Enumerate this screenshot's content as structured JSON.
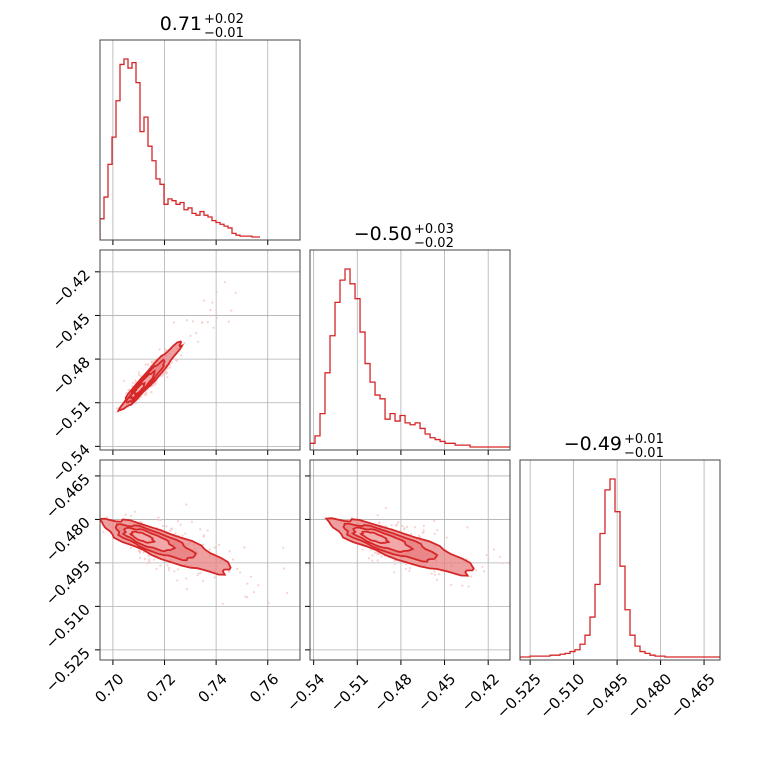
{
  "colors": {
    "main": "#d62728",
    "fill": "#f4b3b3",
    "fill_dark": "#e87f80",
    "scatter": "#f6c6c6"
  },
  "chart_data": [
    {
      "type": "histogram",
      "panel": "1D marginal, parameter 1",
      "title": {
        "base": "0.71",
        "sup": "+0.02",
        "sub": "−0.01"
      },
      "xlim": [
        0.695,
        0.7725
      ],
      "xticks": [
        0.7,
        0.72,
        0.74,
        0.76
      ],
      "xticklabels": [
        "0.70",
        "0.72",
        "0.74",
        "0.76"
      ],
      "bin_edges_start": 0.695,
      "bin_width": 0.00155,
      "counts": [
        10,
        22,
        40,
        55,
        75,
        95,
        98,
        93,
        96,
        85,
        58,
        66,
        50,
        42,
        32,
        29,
        18,
        21,
        20,
        18,
        19,
        15,
        16,
        13,
        12,
        14,
        12,
        11,
        9,
        8,
        7,
        6,
        5,
        2,
        1,
        0.5,
        0.5,
        0.5,
        0,
        0
      ],
      "grid": true
    },
    {
      "type": "histogram",
      "panel": "1D marginal, parameter 2",
      "title": {
        "base": "−0.50",
        "sup": "+0.03",
        "sub": "−0.02"
      },
      "xlim": [
        -0.5425,
        -0.405
      ],
      "xticks": [
        -0.54,
        -0.51,
        -0.48,
        -0.45,
        -0.42
      ],
      "xticklabels": [
        "−0.54",
        "−0.51",
        "−0.48",
        "−0.45",
        "−0.42"
      ],
      "bin_edges_start": -0.5425,
      "bin_width": 0.00344,
      "counts": [
        2,
        6,
        18,
        40,
        60,
        78,
        90,
        96,
        88,
        80,
        62,
        45,
        35,
        28,
        26,
        15,
        18,
        14,
        17,
        13,
        12,
        13,
        10,
        7,
        5,
        4,
        3,
        2,
        2,
        1,
        1,
        1,
        0,
        0,
        0,
        0,
        0,
        0,
        0,
        0
      ],
      "grid": true
    },
    {
      "type": "histogram",
      "panel": "1D marginal, parameter 3",
      "title": {
        "base": "−0.49",
        "sup": "+0.01",
        "sub": "−0.01"
      },
      "xlim": [
        -0.5285,
        -0.4595
      ],
      "xticks": [
        -0.525,
        -0.51,
        -0.495,
        -0.48,
        -0.465
      ],
      "xticklabels": [
        "−0.525",
        "−0.510",
        "−0.495",
        "−0.480",
        "−0.465"
      ],
      "bin_edges_start": -0.5285,
      "bin_width": 0.001725,
      "counts": [
        0,
        0,
        0.5,
        0.5,
        0.5,
        0.5,
        1,
        1,
        1.5,
        2,
        3,
        4,
        7,
        12,
        22,
        40,
        68,
        92,
        98,
        80,
        50,
        26,
        12,
        6,
        3,
        2,
        1,
        0.5,
        0.5,
        0,
        0,
        0,
        0,
        0,
        0,
        0,
        0,
        0,
        0,
        0
      ],
      "grid": true
    },
    {
      "type": "scatter-contour",
      "panel": "2D, parameter 1 vs parameter 2",
      "xlim": [
        0.695,
        0.7725
      ],
      "ylim": [
        -0.5425,
        -0.405
      ],
      "xticks": [
        0.7,
        0.72,
        0.74,
        0.76
      ],
      "yticks": [
        -0.54,
        -0.51,
        -0.48,
        -0.45,
        -0.42
      ],
      "yticklabels": [
        "−0.54",
        "−0.51",
        "−0.48",
        "−0.45",
        "−0.42"
      ],
      "center": [
        0.7095,
        -0.502
      ],
      "direction_per_x": 1.98,
      "contours": [
        {
          "level": 0.4,
          "half_length": 0.004,
          "half_width": 0.0014
        },
        {
          "level": 0.8,
          "half_length": 0.01,
          "half_width": 0.0022
        },
        {
          "level": 1.2,
          "half_length": 0.016,
          "half_width": 0.003
        },
        {
          "level": 1.6,
          "half_length": 0.026,
          "half_width": 0.004
        }
      ],
      "points_n": 260,
      "grid": true
    },
    {
      "type": "scatter-contour",
      "panel": "2D, parameter 1 vs parameter 3",
      "xlim": [
        0.695,
        0.7725
      ],
      "ylim": [
        -0.5285,
        -0.4595
      ],
      "xticks": [
        0.7,
        0.72,
        0.74,
        0.76
      ],
      "xticklabels": [
        "0.70",
        "0.72",
        "0.74",
        "0.76"
      ],
      "yticks": [
        -0.525,
        -0.51,
        -0.495,
        -0.48,
        -0.465
      ],
      "yticklabels": [
        "−0.525",
        "−0.510",
        "−0.495",
        "−0.480",
        "−0.465"
      ],
      "center": [
        0.7095,
        -0.4855
      ],
      "direction_per_x": -0.33,
      "contours": [
        {
          "level": 0.4,
          "half_length": 0.0045,
          "half_width": 0.0013
        },
        {
          "level": 0.8,
          "half_length": 0.01,
          "half_width": 0.0024
        },
        {
          "level": 1.2,
          "half_length": 0.016,
          "half_width": 0.0034
        },
        {
          "level": 1.6,
          "half_length": 0.026,
          "half_width": 0.0046
        }
      ],
      "points_n": 260,
      "grid": true
    },
    {
      "type": "scatter-contour",
      "panel": "2D, parameter 2 vs parameter 3",
      "xlim": [
        -0.5425,
        -0.405
      ],
      "ylim": [
        -0.5285,
        -0.4595
      ],
      "xticks": [
        -0.54,
        -0.51,
        -0.48,
        -0.45,
        -0.42
      ],
      "xticklabels": [
        "−0.54",
        "−0.51",
        "−0.48",
        "−0.45",
        "−0.42"
      ],
      "yticks": [
        -0.525,
        -0.51,
        -0.495,
        -0.48,
        -0.465
      ],
      "center": [
        -0.502,
        -0.4855
      ],
      "direction_per_x": -0.17,
      "contours": [
        {
          "level": 0.4,
          "half_length": 0.009,
          "half_width": 0.0013
        },
        {
          "level": 0.8,
          "half_length": 0.02,
          "half_width": 0.0024
        },
        {
          "level": 1.2,
          "half_length": 0.032,
          "half_width": 0.0034
        },
        {
          "level": 1.6,
          "half_length": 0.05,
          "half_width": 0.0046
        }
      ],
      "points_n": 260,
      "grid": true
    }
  ]
}
